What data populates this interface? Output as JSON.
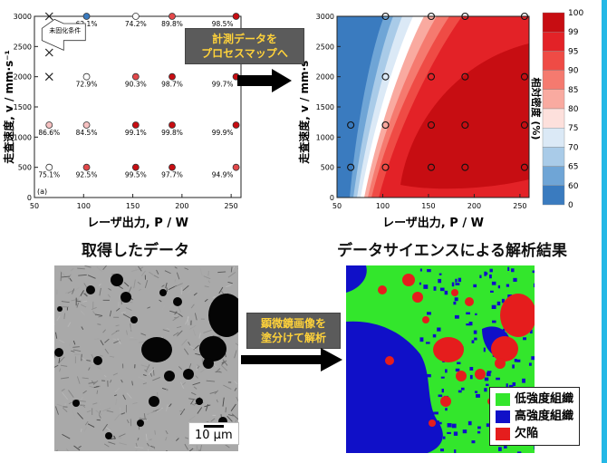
{
  "captions": {
    "acquired": "取得したデータ",
    "analysis": "データサイエンスによる解析結果"
  },
  "callouts": {
    "top": [
      "計測データを",
      "プロセスマップへ"
    ],
    "bottom": [
      "顕微鏡画像を",
      "塗分けて解析"
    ]
  },
  "scatter_note": "未固化条件",
  "micrograph": {
    "scale_label": "10 μm"
  },
  "segmentation": {
    "legend": [
      {
        "label": "低強度組織",
        "color": "#33e62c"
      },
      {
        "label": "高強度組織",
        "color": "#1010c8"
      },
      {
        "label": "欠陥",
        "color": "#e51d1d"
      }
    ]
  },
  "chart_data": [
    {
      "type": "scatter",
      "panel_label": "(a)",
      "xlabel": "レーザ出力, P / W",
      "ylabel": "走査速度, v / mm·s⁻¹",
      "xlim": [
        50,
        260
      ],
      "ylim": [
        0,
        3000
      ],
      "xticks": [
        50,
        100,
        150,
        200,
        250
      ],
      "yticks": [
        0,
        500,
        1000,
        1500,
        2000,
        2500,
        3000
      ],
      "points": [
        {
          "x": 65,
          "y": 3000,
          "label": "",
          "unfused": true
        },
        {
          "x": 65,
          "y": 2400,
          "label": "",
          "unfused": true
        },
        {
          "x": 65,
          "y": 2000,
          "label": "",
          "unfused": true
        },
        {
          "x": 65,
          "y": 1200,
          "label": "86.6%",
          "density": 86.6
        },
        {
          "x": 65,
          "y": 500,
          "label": "75.1%",
          "density": 75.1
        },
        {
          "x": 103,
          "y": 3000,
          "label": "62.1%",
          "density": 62.1
        },
        {
          "x": 103,
          "y": 2000,
          "label": "72.9%",
          "density": 72.9
        },
        {
          "x": 103,
          "y": 1200,
          "label": "84.5%",
          "density": 84.5
        },
        {
          "x": 103,
          "y": 500,
          "label": "92.5%",
          "density": 92.5
        },
        {
          "x": 153,
          "y": 3000,
          "label": "74.2%",
          "density": 74.2
        },
        {
          "x": 153,
          "y": 2000,
          "label": "90.3%",
          "density": 90.3
        },
        {
          "x": 153,
          "y": 1200,
          "label": "99.1%",
          "density": 99.1
        },
        {
          "x": 153,
          "y": 500,
          "label": "99.5%",
          "density": 99.5
        },
        {
          "x": 190,
          "y": 3000,
          "label": "89.8%",
          "density": 89.8
        },
        {
          "x": 190,
          "y": 2000,
          "label": "98.7%",
          "density": 98.7
        },
        {
          "x": 190,
          "y": 1200,
          "label": "99.8%",
          "density": 99.8
        },
        {
          "x": 190,
          "y": 500,
          "label": "97.7%",
          "density": 97.7
        },
        {
          "x": 255,
          "y": 3000,
          "label": "98.5%",
          "density": 98.5
        },
        {
          "x": 255,
          "y": 2000,
          "label": "99.7%",
          "density": 99.7
        },
        {
          "x": 255,
          "y": 1200,
          "label": "99.9%",
          "density": 99.9
        },
        {
          "x": 255,
          "y": 500,
          "label": "94.9%",
          "density": 94.9
        }
      ]
    },
    {
      "type": "heatmap",
      "xlabel": "レーザ出力, P / W",
      "ylabel": "走査速度, v / mm·s⁻¹",
      "xlim": [
        50,
        260
      ],
      "ylim": [
        0,
        3000
      ],
      "xticks": [
        50,
        100,
        150,
        200,
        250
      ],
      "yticks": [
        0,
        500,
        1000,
        1500,
        2000,
        2500,
        3000
      ],
      "colorbar": {
        "label": "相対密度 (%)",
        "levels": [
          "100",
          "99",
          "95",
          "90",
          "85",
          "80",
          "75",
          "70",
          "65",
          "60",
          "0"
        ],
        "colors": [
          "#c70d12",
          "#e32227",
          "#ef4b45",
          "#f57a6f",
          "#f9aaa0",
          "#fde0dc",
          "#dbe9f6",
          "#a9cbe8",
          "#6fa5d6",
          "#3a7bbf"
        ]
      },
      "points": [
        {
          "x": 65,
          "y": 500
        },
        {
          "x": 65,
          "y": 1200
        },
        {
          "x": 103,
          "y": 500
        },
        {
          "x": 103,
          "y": 1200
        },
        {
          "x": 103,
          "y": 2000
        },
        {
          "x": 103,
          "y": 3000
        },
        {
          "x": 153,
          "y": 500
        },
        {
          "x": 153,
          "y": 1200
        },
        {
          "x": 153,
          "y": 2000
        },
        {
          "x": 153,
          "y": 3000
        },
        {
          "x": 190,
          "y": 500
        },
        {
          "x": 190,
          "y": 1200
        },
        {
          "x": 190,
          "y": 2000
        },
        {
          "x": 190,
          "y": 3000
        },
        {
          "x": 255,
          "y": 500
        },
        {
          "x": 255,
          "y": 1200
        },
        {
          "x": 255,
          "y": 2000
        },
        {
          "x": 255,
          "y": 3000
        }
      ]
    }
  ]
}
